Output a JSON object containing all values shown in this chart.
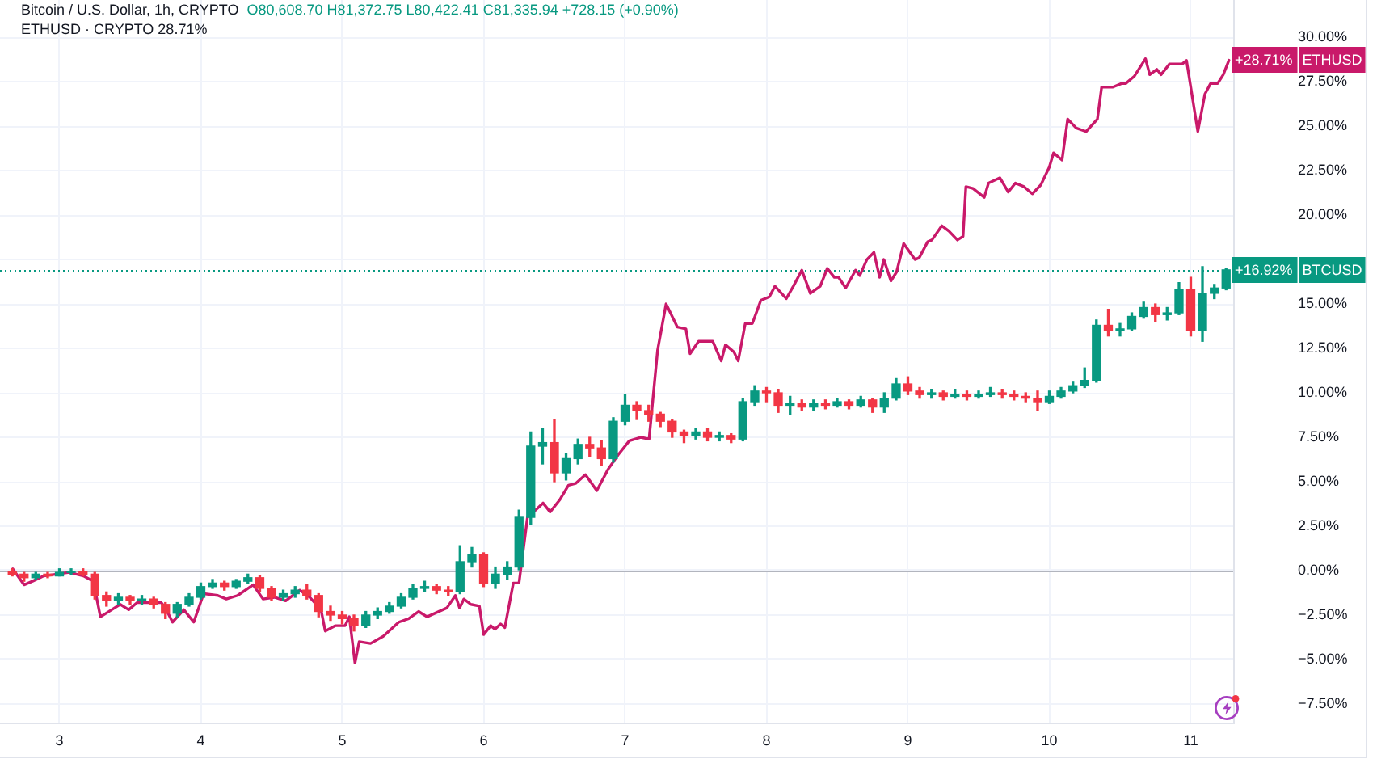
{
  "chart_data": {
    "type": "candlestick",
    "title": "Bitcoin / U.S. Dollar, 1h, CRYPTO",
    "subtitle": "O80,608.70 H81,372.75 L80,422.41 C81,335.94 +728.15 (+0.90%)",
    "annotations": [
      "ETHUSD · CRYPTO 28.71%"
    ],
    "series": [
      {
        "name": "BTCUSD",
        "x": [
          2.667,
          2.75,
          2.833,
          2.917,
          3,
          3.083,
          3.167,
          3.25,
          3.333,
          3.417,
          3.5,
          3.583,
          3.667,
          3.75,
          3.833,
          3.917,
          4,
          4.083,
          4.167,
          4.25,
          4.333,
          4.417,
          4.5,
          4.583,
          4.667,
          4.75,
          4.833,
          4.917,
          5,
          5.083,
          5.167,
          5.25,
          5.333,
          5.417,
          5.5,
          5.583,
          5.667,
          5.75,
          5.833,
          5.917,
          6,
          6.083,
          6.167,
          6.25,
          6.333,
          6.417,
          6.5,
          6.583,
          6.667,
          6.75,
          6.833,
          6.917,
          7,
          7.083,
          7.167,
          7.25,
          7.333,
          7.417,
          7.5,
          7.583,
          7.667,
          7.75,
          7.833,
          7.917,
          8,
          8.083,
          8.167,
          8.25,
          8.333,
          8.417,
          8.5,
          8.583,
          8.667,
          8.75,
          8.833,
          8.917,
          9,
          9.083,
          9.167,
          9.25,
          9.333,
          9.417,
          9.5,
          9.583,
          9.667,
          9.75,
          9.833,
          9.917,
          10,
          10.083,
          10.167,
          10.25,
          10.333,
          10.417,
          10.5,
          10.583,
          10.667,
          10.75,
          10.833,
          10.917,
          11,
          11.083,
          11.167,
          11.25
        ],
        "ohlc": [
          [
            0.0,
            0.1,
            -0.3,
            -0.2
          ],
          [
            -0.2,
            -0.1,
            -0.6,
            -0.4
          ],
          [
            -0.4,
            -0.1,
            -0.5,
            -0.2
          ],
          [
            -0.2,
            -0.1,
            -0.4,
            -0.3
          ],
          [
            -0.3,
            0.1,
            -0.3,
            -0.1
          ],
          [
            -0.1,
            0.1,
            -0.2,
            0.0
          ],
          [
            0.0,
            0.1,
            -0.3,
            -0.2
          ],
          [
            -0.2,
            -0.1,
            -1.6,
            -1.4
          ],
          [
            -1.4,
            -1.2,
            -2.0,
            -1.7
          ],
          [
            -1.7,
            -1.3,
            -1.9,
            -1.5
          ],
          [
            -1.5,
            -1.4,
            -1.9,
            -1.7
          ],
          [
            -1.7,
            -1.4,
            -1.9,
            -1.6
          ],
          [
            -1.6,
            -1.5,
            -2.1,
            -1.9
          ],
          [
            -1.9,
            -1.8,
            -2.7,
            -2.4
          ],
          [
            -2.4,
            -1.8,
            -2.6,
            -1.9
          ],
          [
            -1.9,
            -1.3,
            -2.0,
            -1.5
          ],
          [
            -1.5,
            -0.7,
            -1.6,
            -0.9
          ],
          [
            -0.9,
            -0.5,
            -1.0,
            -0.7
          ],
          [
            -0.7,
            -0.6,
            -1.1,
            -0.9
          ],
          [
            -0.9,
            -0.5,
            -1.0,
            -0.6
          ],
          [
            -0.6,
            -0.2,
            -0.7,
            -0.4
          ],
          [
            -0.4,
            -0.3,
            -1.2,
            -1.0
          ],
          [
            -1.0,
            -0.9,
            -1.7,
            -1.5
          ],
          [
            -1.5,
            -1.1,
            -1.7,
            -1.3
          ],
          [
            -1.3,
            -0.9,
            -1.5,
            -1.1
          ],
          [
            -1.1,
            -0.8,
            -1.6,
            -1.4
          ],
          [
            -1.4,
            -1.3,
            -2.6,
            -2.3
          ],
          [
            -2.3,
            -2.0,
            -2.8,
            -2.5
          ],
          [
            -2.5,
            -2.3,
            -3.0,
            -2.7
          ],
          [
            -2.7,
            -2.5,
            -3.4,
            -3.1
          ],
          [
            -3.1,
            -2.3,
            -3.2,
            -2.5
          ],
          [
            -2.5,
            -2.1,
            -2.7,
            -2.3
          ],
          [
            -2.3,
            -1.8,
            -2.4,
            -2.0
          ],
          [
            -2.0,
            -1.3,
            -2.1,
            -1.5
          ],
          [
            -1.5,
            -0.8,
            -1.6,
            -1.0
          ],
          [
            -1.0,
            -0.6,
            -1.2,
            -0.9
          ],
          [
            -0.9,
            -0.8,
            -1.3,
            -1.1
          ],
          [
            -1.1,
            -0.9,
            -1.4,
            -1.2
          ],
          [
            -1.2,
            1.4,
            -1.3,
            0.5
          ],
          [
            0.5,
            1.3,
            0.2,
            0.9
          ],
          [
            0.9,
            1.0,
            -0.9,
            -0.7
          ],
          [
            -0.7,
            0.2,
            -1.0,
            -0.2
          ],
          [
            -0.2,
            0.5,
            -0.5,
            0.2
          ],
          [
            0.2,
            3.4,
            0.0,
            3.0
          ],
          [
            3.0,
            7.8,
            2.6,
            7.0
          ],
          [
            7.0,
            8.0,
            6.0,
            7.2
          ],
          [
            7.2,
            8.5,
            5.0,
            5.5
          ],
          [
            5.5,
            6.6,
            5.1,
            6.3
          ],
          [
            6.3,
            7.4,
            6.0,
            7.1
          ],
          [
            7.1,
            7.5,
            6.4,
            6.9
          ],
          [
            6.9,
            7.3,
            5.9,
            6.3
          ],
          [
            6.3,
            8.6,
            6.1,
            8.4
          ],
          [
            8.4,
            9.9,
            8.2,
            9.3
          ],
          [
            9.3,
            9.5,
            8.5,
            9.0
          ],
          [
            9.0,
            9.3,
            8.4,
            8.8
          ],
          [
            8.8,
            8.9,
            8.1,
            8.4
          ],
          [
            8.4,
            8.5,
            7.5,
            7.8
          ],
          [
            7.8,
            7.9,
            7.2,
            7.6
          ],
          [
            7.6,
            8.0,
            7.4,
            7.8
          ],
          [
            7.8,
            8.0,
            7.3,
            7.5
          ],
          [
            7.5,
            7.8,
            7.3,
            7.6
          ],
          [
            7.6,
            7.7,
            7.2,
            7.4
          ],
          [
            7.4,
            9.7,
            7.3,
            9.5
          ],
          [
            9.5,
            10.4,
            9.3,
            10.1
          ],
          [
            10.1,
            10.3,
            9.5,
            10.0
          ],
          [
            10.0,
            10.2,
            8.9,
            9.3
          ],
          [
            9.3,
            9.8,
            8.8,
            9.4
          ],
          [
            9.4,
            9.6,
            9.0,
            9.2
          ],
          [
            9.2,
            9.6,
            9.0,
            9.4
          ],
          [
            9.4,
            9.6,
            9.1,
            9.3
          ],
          [
            9.3,
            9.7,
            9.2,
            9.5
          ],
          [
            9.5,
            9.6,
            9.1,
            9.3
          ],
          [
            9.3,
            9.8,
            9.2,
            9.6
          ],
          [
            9.6,
            9.7,
            8.9,
            9.2
          ],
          [
            9.2,
            10.0,
            8.9,
            9.7
          ],
          [
            9.7,
            10.8,
            9.6,
            10.5
          ],
          [
            10.5,
            10.9,
            9.9,
            10.1
          ],
          [
            10.1,
            10.3,
            9.7,
            9.9
          ],
          [
            9.9,
            10.2,
            9.7,
            10.0
          ],
          [
            10.0,
            10.1,
            9.6,
            9.8
          ],
          [
            9.8,
            10.2,
            9.7,
            9.9
          ],
          [
            9.9,
            10.1,
            9.6,
            9.8
          ],
          [
            9.8,
            10.1,
            9.7,
            9.9
          ],
          [
            9.9,
            10.3,
            9.8,
            10.0
          ],
          [
            10.0,
            10.2,
            9.7,
            9.9
          ],
          [
            9.9,
            10.1,
            9.6,
            9.8
          ],
          [
            9.8,
            10.0,
            9.5,
            9.7
          ],
          [
            9.7,
            10.1,
            9.0,
            9.5
          ],
          [
            9.5,
            10.1,
            9.4,
            9.8
          ],
          [
            9.8,
            10.3,
            9.7,
            10.1
          ],
          [
            10.1,
            10.6,
            10.0,
            10.4
          ],
          [
            10.4,
            11.4,
            10.3,
            10.7
          ],
          [
            10.7,
            14.1,
            10.6,
            13.8
          ],
          [
            13.8,
            14.7,
            13.2,
            13.5
          ],
          [
            13.5,
            13.9,
            13.2,
            13.6
          ],
          [
            13.6,
            14.5,
            13.5,
            14.3
          ],
          [
            14.3,
            15.1,
            14.2,
            14.8
          ],
          [
            14.8,
            15.0,
            14.0,
            14.4
          ],
          [
            14.4,
            14.8,
            14.1,
            14.5
          ],
          [
            14.5,
            16.2,
            14.4,
            15.8
          ],
          [
            15.8,
            16.5,
            13.2,
            13.5
          ],
          [
            13.5,
            17.1,
            12.9,
            15.6
          ],
          [
            15.6,
            16.1,
            15.3,
            15.9
          ],
          [
            15.9,
            17.0,
            15.8,
            16.92
          ]
        ],
        "colors": [
          "#f23645",
          "#f23645",
          "#089981",
          "#f23645",
          "#089981",
          "#089981",
          "#f23645",
          "#f23645",
          "#f23645",
          "#089981",
          "#f23645",
          "#089981",
          "#f23645",
          "#f23645",
          "#089981",
          "#089981",
          "#089981",
          "#089981",
          "#f23645",
          "#089981",
          "#089981",
          "#f23645",
          "#f23645",
          "#089981",
          "#089981",
          "#f23645",
          "#f23645",
          "#f23645",
          "#f23645",
          "#f23645",
          "#089981",
          "#089981",
          "#089981",
          "#089981",
          "#089981",
          "#089981",
          "#f23645",
          "#f23645",
          "#089981",
          "#089981",
          "#f23645",
          "#089981",
          "#089981",
          "#089981",
          "#089981",
          "#089981",
          "#f23645",
          "#089981",
          "#089981",
          "#f23645",
          "#f23645",
          "#089981",
          "#089981",
          "#f23645",
          "#f23645",
          "#f23645",
          "#f23645",
          "#f23645",
          "#089981",
          "#f23645",
          "#089981",
          "#f23645",
          "#089981",
          "#089981",
          "#f23645",
          "#f23645",
          "#089981",
          "#f23645",
          "#089981",
          "#f23645",
          "#089981",
          "#f23645",
          "#089981",
          "#f23645",
          "#089981",
          "#089981",
          "#f23645",
          "#f23645",
          "#089981",
          "#f23645",
          "#089981",
          "#f23645",
          "#089981",
          "#089981",
          "#f23645",
          "#f23645",
          "#f23645",
          "#f23645",
          "#089981",
          "#089981",
          "#089981",
          "#089981",
          "#089981",
          "#f23645",
          "#089981",
          "#089981",
          "#089981",
          "#f23645",
          "#089981",
          "#089981",
          "#f23645",
          "#089981",
          "#089981",
          "#089981"
        ],
        "value_labels": [
          null,
          null,
          null,
          null,
          null,
          null,
          null,
          null,
          null,
          null,
          null,
          null,
          null,
          null,
          null,
          null,
          null,
          null,
          null,
          null,
          null,
          null,
          null,
          null,
          null,
          null,
          null,
          null,
          null,
          null,
          null,
          null,
          null,
          null,
          null,
          null,
          null,
          null,
          null,
          null,
          null,
          null,
          null,
          null,
          null,
          null,
          null,
          null,
          null,
          null,
          null,
          null,
          null,
          null,
          null,
          null,
          null,
          null,
          null,
          null,
          null,
          null,
          null,
          null,
          null,
          null,
          null,
          null,
          null,
          null,
          null,
          null,
          null,
          null,
          null,
          null,
          null,
          null,
          null,
          null,
          null,
          null,
          null,
          null,
          null,
          null,
          null,
          null,
          null,
          null,
          null,
          null,
          null,
          null,
          null,
          null,
          null,
          null,
          null,
          null,
          null,
          null,
          null,
          "+16.92%"
        ]
      },
      {
        "name": "ETHUSD",
        "type": "line",
        "color": "#c9196a",
        "x": [
          2.67,
          2.75,
          2.81,
          2.89,
          3.07,
          3.17,
          3.24,
          3.29,
          3.37,
          3.43,
          3.49,
          3.55,
          3.72,
          3.75,
          3.8,
          3.88,
          3.95,
          4.02,
          4.12,
          4.18,
          4.26,
          4.37,
          4.44,
          4.52,
          4.6,
          4.7,
          4.77,
          4.85,
          4.88,
          4.95,
          5.02,
          5.05,
          5.09,
          5.12,
          5.2,
          5.29,
          5.4,
          5.47,
          5.54,
          5.6,
          5.74,
          5.8,
          5.83,
          5.86,
          5.91,
          5.97,
          6,
          6.05,
          6.08,
          6.12,
          6.15,
          6.21,
          6.25,
          6.31,
          6.38,
          6.42,
          6.47,
          6.54,
          6.6,
          6.65,
          6.72,
          6.8,
          6.88,
          6.95,
          7.03,
          7.11,
          7.17,
          7.23,
          7.29,
          7.37,
          7.43,
          7.46,
          7.52,
          7.62,
          7.68,
          7.71,
          7.77,
          7.8,
          7.85,
          7.9,
          7.96,
          8.02,
          8.06,
          8.14,
          8.19,
          8.25,
          8.31,
          8.38,
          8.43,
          8.48,
          8.51,
          8.56,
          8.63,
          8.66,
          8.71,
          8.76,
          8.8,
          8.83,
          8.88,
          8.92,
          8.97,
          9.05,
          9.08,
          9.14,
          9.17,
          9.24,
          9.29,
          9.35,
          9.39,
          9.41,
          9.46,
          9.54,
          9.57,
          9.65,
          9.71,
          9.76,
          9.82,
          9.88,
          9.94,
          10,
          10.03,
          10.09,
          10.13,
          10.19,
          10.26,
          10.34,
          10.37,
          10.45,
          10.51,
          10.54,
          10.6,
          10.68,
          10.71,
          10.76,
          10.79,
          10.85,
          10.94,
          10.97,
          11.05,
          11.1,
          11.14,
          11.19,
          11.23,
          11.27
        ],
        "values": [
          0.1,
          -0.8,
          -0.6,
          -0.3,
          -0.1,
          -0.3,
          -0.6,
          -2.6,
          -2.2,
          -1.9,
          -2.2,
          -1.8,
          -1.8,
          -2.1,
          -2.9,
          -2.2,
          -2.9,
          -1.3,
          -1.4,
          -1.6,
          -1.4,
          -0.8,
          -1.6,
          -1.5,
          -1.7,
          -1.1,
          -1.5,
          -2.2,
          -3.4,
          -3.1,
          -3.1,
          -2.6,
          -5.2,
          -4.0,
          -4.1,
          -3.7,
          -2.9,
          -2.7,
          -2.3,
          -2.6,
          -2.1,
          -1.4,
          -2.1,
          -1.6,
          -1.9,
          -2.0,
          -3.6,
          -3.1,
          -3.3,
          -3.0,
          -3.2,
          -0.7,
          -0.7,
          3.0,
          3.5,
          3.8,
          3.3,
          4.0,
          4.8,
          4.9,
          5.4,
          4.5,
          5.7,
          6.5,
          7.3,
          7.5,
          7.4,
          12.4,
          15.0,
          13.7,
          13.6,
          12.2,
          12.9,
          12.9,
          11.8,
          12.7,
          12.3,
          11.8,
          13.9,
          13.9,
          15.2,
          15.4,
          16.0,
          15.3,
          16.0,
          16.9,
          15.6,
          16.0,
          17.0,
          16.5,
          16.5,
          15.9,
          16.9,
          16.6,
          17.5,
          17.9,
          16.5,
          17.5,
          16.3,
          16.8,
          18.4,
          17.5,
          17.6,
          18.5,
          18.6,
          19.4,
          19.1,
          18.6,
          18.8,
          21.6,
          21.5,
          21.0,
          21.8,
          22.1,
          21.3,
          21.8,
          21.6,
          21.2,
          21.7,
          22.7,
          23.5,
          23.1,
          25.4,
          24.9,
          24.7,
          25.4,
          27.2,
          27.2,
          27.4,
          27.4,
          27.8,
          28.8,
          27.9,
          28.2,
          27.9,
          28.5,
          28.5,
          28.7,
          24.7,
          26.8,
          27.4,
          27.4,
          27.9,
          28.71
        ],
        "value_labels": [
          null,
          null,
          null,
          null,
          null,
          null,
          null,
          null,
          null,
          null,
          null,
          null,
          null,
          null,
          null,
          null,
          null,
          null,
          null,
          null,
          null,
          null,
          null,
          null,
          null,
          null,
          null,
          null,
          null,
          null,
          null,
          null,
          null,
          null,
          null,
          null,
          null,
          null,
          null,
          null,
          null,
          null,
          null,
          null,
          null,
          null,
          null,
          null,
          null,
          null,
          null,
          null,
          null,
          null,
          null,
          null,
          null,
          null,
          null,
          null,
          null,
          null,
          null,
          null,
          null,
          null,
          null,
          null,
          null,
          null,
          null,
          null,
          null,
          null,
          null,
          null,
          null,
          null,
          null,
          null,
          null,
          null,
          null,
          null,
          null,
          null,
          null,
          null,
          null,
          null,
          null,
          null,
          null,
          null,
          null,
          null,
          null,
          null,
          null,
          null,
          null,
          null,
          null,
          null,
          null,
          null,
          null,
          null,
          null,
          null,
          null,
          null,
          null,
          null,
          null,
          null,
          null,
          null,
          null,
          null,
          null,
          null,
          null,
          null,
          null,
          null,
          null,
          null,
          null,
          null,
          null,
          null,
          null,
          null,
          null,
          null,
          null,
          null,
          null,
          null,
          null,
          null,
          null,
          "+28.71%"
        ]
      }
    ],
    "xlim": [
      2.58,
      11.3
    ],
    "xticks": [
      3,
      4,
      5,
      6,
      7,
      8,
      9,
      10,
      11
    ],
    "ylim": [
      -8.55,
      32.1
    ],
    "yticks": [
      {
        "value": 30,
        "label": "30.00%"
      },
      {
        "value": 27.5,
        "label": "27.50%"
      },
      {
        "value": 25,
        "label": "25.00%"
      },
      {
        "value": 22.5,
        "label": "22.50%"
      },
      {
        "value": 20,
        "label": "20.00%"
      },
      {
        "value": 17.5,
        "label": null
      },
      {
        "value": 15,
        "label": "15.00%"
      },
      {
        "value": 12.5,
        "label": "12.50%"
      },
      {
        "value": 10,
        "label": "10.00%"
      },
      {
        "value": 7.5,
        "label": "7.50%"
      },
      {
        "value": 5,
        "label": "5.00%"
      },
      {
        "value": 2.5,
        "label": "2.50%"
      },
      {
        "value": 0,
        "label": "0.00%"
      },
      {
        "value": -2.5,
        "label": "−2.50%"
      },
      {
        "value": -5,
        "label": "−5.00%"
      },
      {
        "value": -7.5,
        "label": "−7.50%"
      }
    ],
    "grid": true,
    "marker": "none",
    "ref_lines": [
      {
        "axis": "y",
        "value": 0,
        "color": "#b2b5be"
      },
      {
        "axis": "y",
        "value": 16.92,
        "color": "#089981",
        "line_style": "dotted"
      }
    ]
  }
}
